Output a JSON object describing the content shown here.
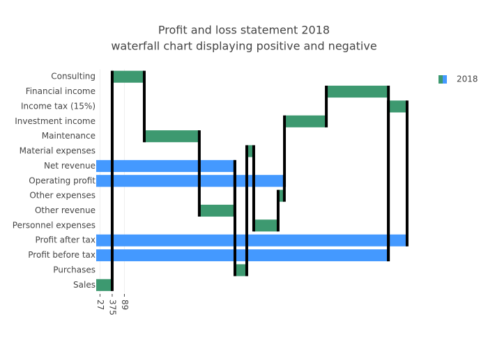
{
  "chart_data": {
    "type": "waterfall",
    "orientation": "h",
    "title": "Profit and loss statement 2018",
    "subtitle": "waterfall chart displaying positive and negative",
    "series_name": "2018",
    "categories": [
      "Sales",
      "Consulting",
      "Maintenance",
      "Other revenue",
      "Net revenue",
      "Purchases",
      "Material expenses",
      "Personnel expenses",
      "Other expenses",
      "Operating profit",
      "Investment income",
      "Financial income",
      "Profit before tax",
      "Income tax (15%)",
      "Profit after tax"
    ],
    "measure": [
      "relative",
      "relative",
      "relative",
      "relative",
      "total",
      "relative",
      "relative",
      "relative",
      "relative",
      "total",
      "relative",
      "relative",
      "total",
      "relative",
      "total"
    ],
    "values": [
      1.31,
      2.63,
      4.51,
      2.91,
      11.37,
      0.97,
      0.57,
      2.0,
      0.51,
      15.43,
      3.43,
      5.09,
      23.94,
      1.54,
      25.49
    ],
    "increasing_color": "#3d9970",
    "totals_color": "#4499ff",
    "xlim": [
      0,
      25.54
    ],
    "xticks": [
      {
        "value": 0.31,
        "label": "27"
      },
      {
        "value": 1.31,
        "label": "375"
      },
      {
        "value": 2.31,
        "label": "89"
      }
    ],
    "grid": true,
    "legend": "top-right"
  }
}
